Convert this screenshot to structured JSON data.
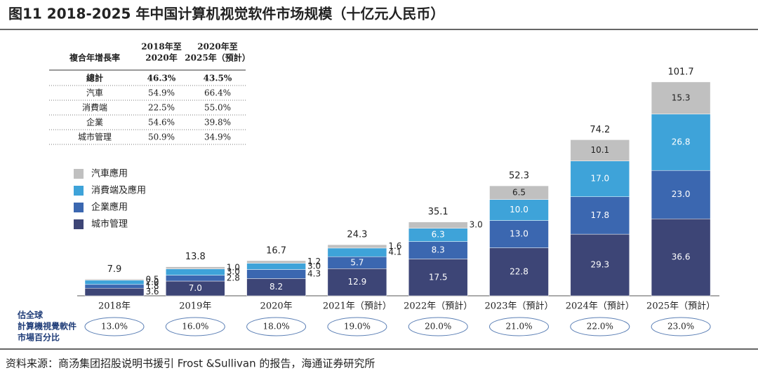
{
  "chart_data": {
    "type": "bar",
    "stacked": true,
    "title": "图11 2018-2025 年中国计算机视觉软件市场规模（十亿元人民币）",
    "source": "资料来源：商汤集团招股说明书援引 Frost &Sullivan 的报告，海通证券研究所",
    "categories": [
      "2018年",
      "2019年",
      "2020年",
      "2021年（預計）",
      "2022年（預計）",
      "2023年（預計）",
      "2024年（預計）",
      "2025年（預計）"
    ],
    "series": [
      {
        "name": "城市管理",
        "color": "#3d4576",
        "values": [
          3.6,
          7.0,
          8.2,
          12.9,
          17.5,
          22.8,
          29.3,
          36.6
        ],
        "value_labels": [
          "3.6",
          "7.0",
          "8.2",
          "12.9",
          "17.5",
          "22.8",
          "29.3",
          "36.6"
        ]
      },
      {
        "name": "企業應用",
        "color": "#3b67b0",
        "values": [
          1.8,
          2.8,
          4.3,
          5.7,
          8.3,
          13.0,
          17.8,
          23.0
        ],
        "value_labels": [
          "1.8",
          "2.8",
          "4.3",
          "5.7",
          "8.3",
          "13.0",
          "17.8",
          "23.0"
        ]
      },
      {
        "name": "消費端及應用",
        "color": "#3ea3d9",
        "values": [
          2.0,
          3.0,
          3.0,
          4.1,
          6.3,
          10.0,
          17.0,
          26.8
        ],
        "value_labels": [
          "2.0",
          "3.0",
          "3.0",
          "4.1",
          "6.3",
          "10.0",
          "17.0",
          "26.8"
        ]
      },
      {
        "name": "汽車應用",
        "color": "#c0c0c0",
        "values": [
          0.5,
          1.0,
          1.2,
          1.6,
          3.0,
          6.5,
          10.1,
          15.3
        ],
        "value_labels": [
          "0.5",
          "1.0",
          "1.2",
          "1.6",
          "3.0",
          "6.5",
          "10.1",
          "15.3"
        ]
      }
    ],
    "totals": [
      7.9,
      13.8,
      16.7,
      24.3,
      35.1,
      52.3,
      74.2,
      101.7
    ],
    "share_title": [
      "估全球",
      "計算機視覺軟件",
      "市場百分比"
    ],
    "share_labels": [
      "13.0%",
      "16.0%",
      "18.0%",
      "19.0%",
      "20.0%",
      "21.0%",
      "22.0%",
      "23.0%"
    ],
    "cagr_table": {
      "header": [
        "複合年增長率",
        [
          "2018年至",
          "2020年"
        ],
        [
          "2020年至",
          "2025年（預計）"
        ]
      ],
      "rows": [
        [
          "總計",
          "46.3%",
          "43.5%"
        ],
        [
          "汽車",
          "54.9%",
          "66.4%"
        ],
        [
          "消費端",
          "22.5%",
          "55.0%"
        ],
        [
          "企業",
          "54.6%",
          "39.8%"
        ],
        [
          "城市管理",
          "50.9%",
          "34.9%"
        ]
      ]
    }
  }
}
